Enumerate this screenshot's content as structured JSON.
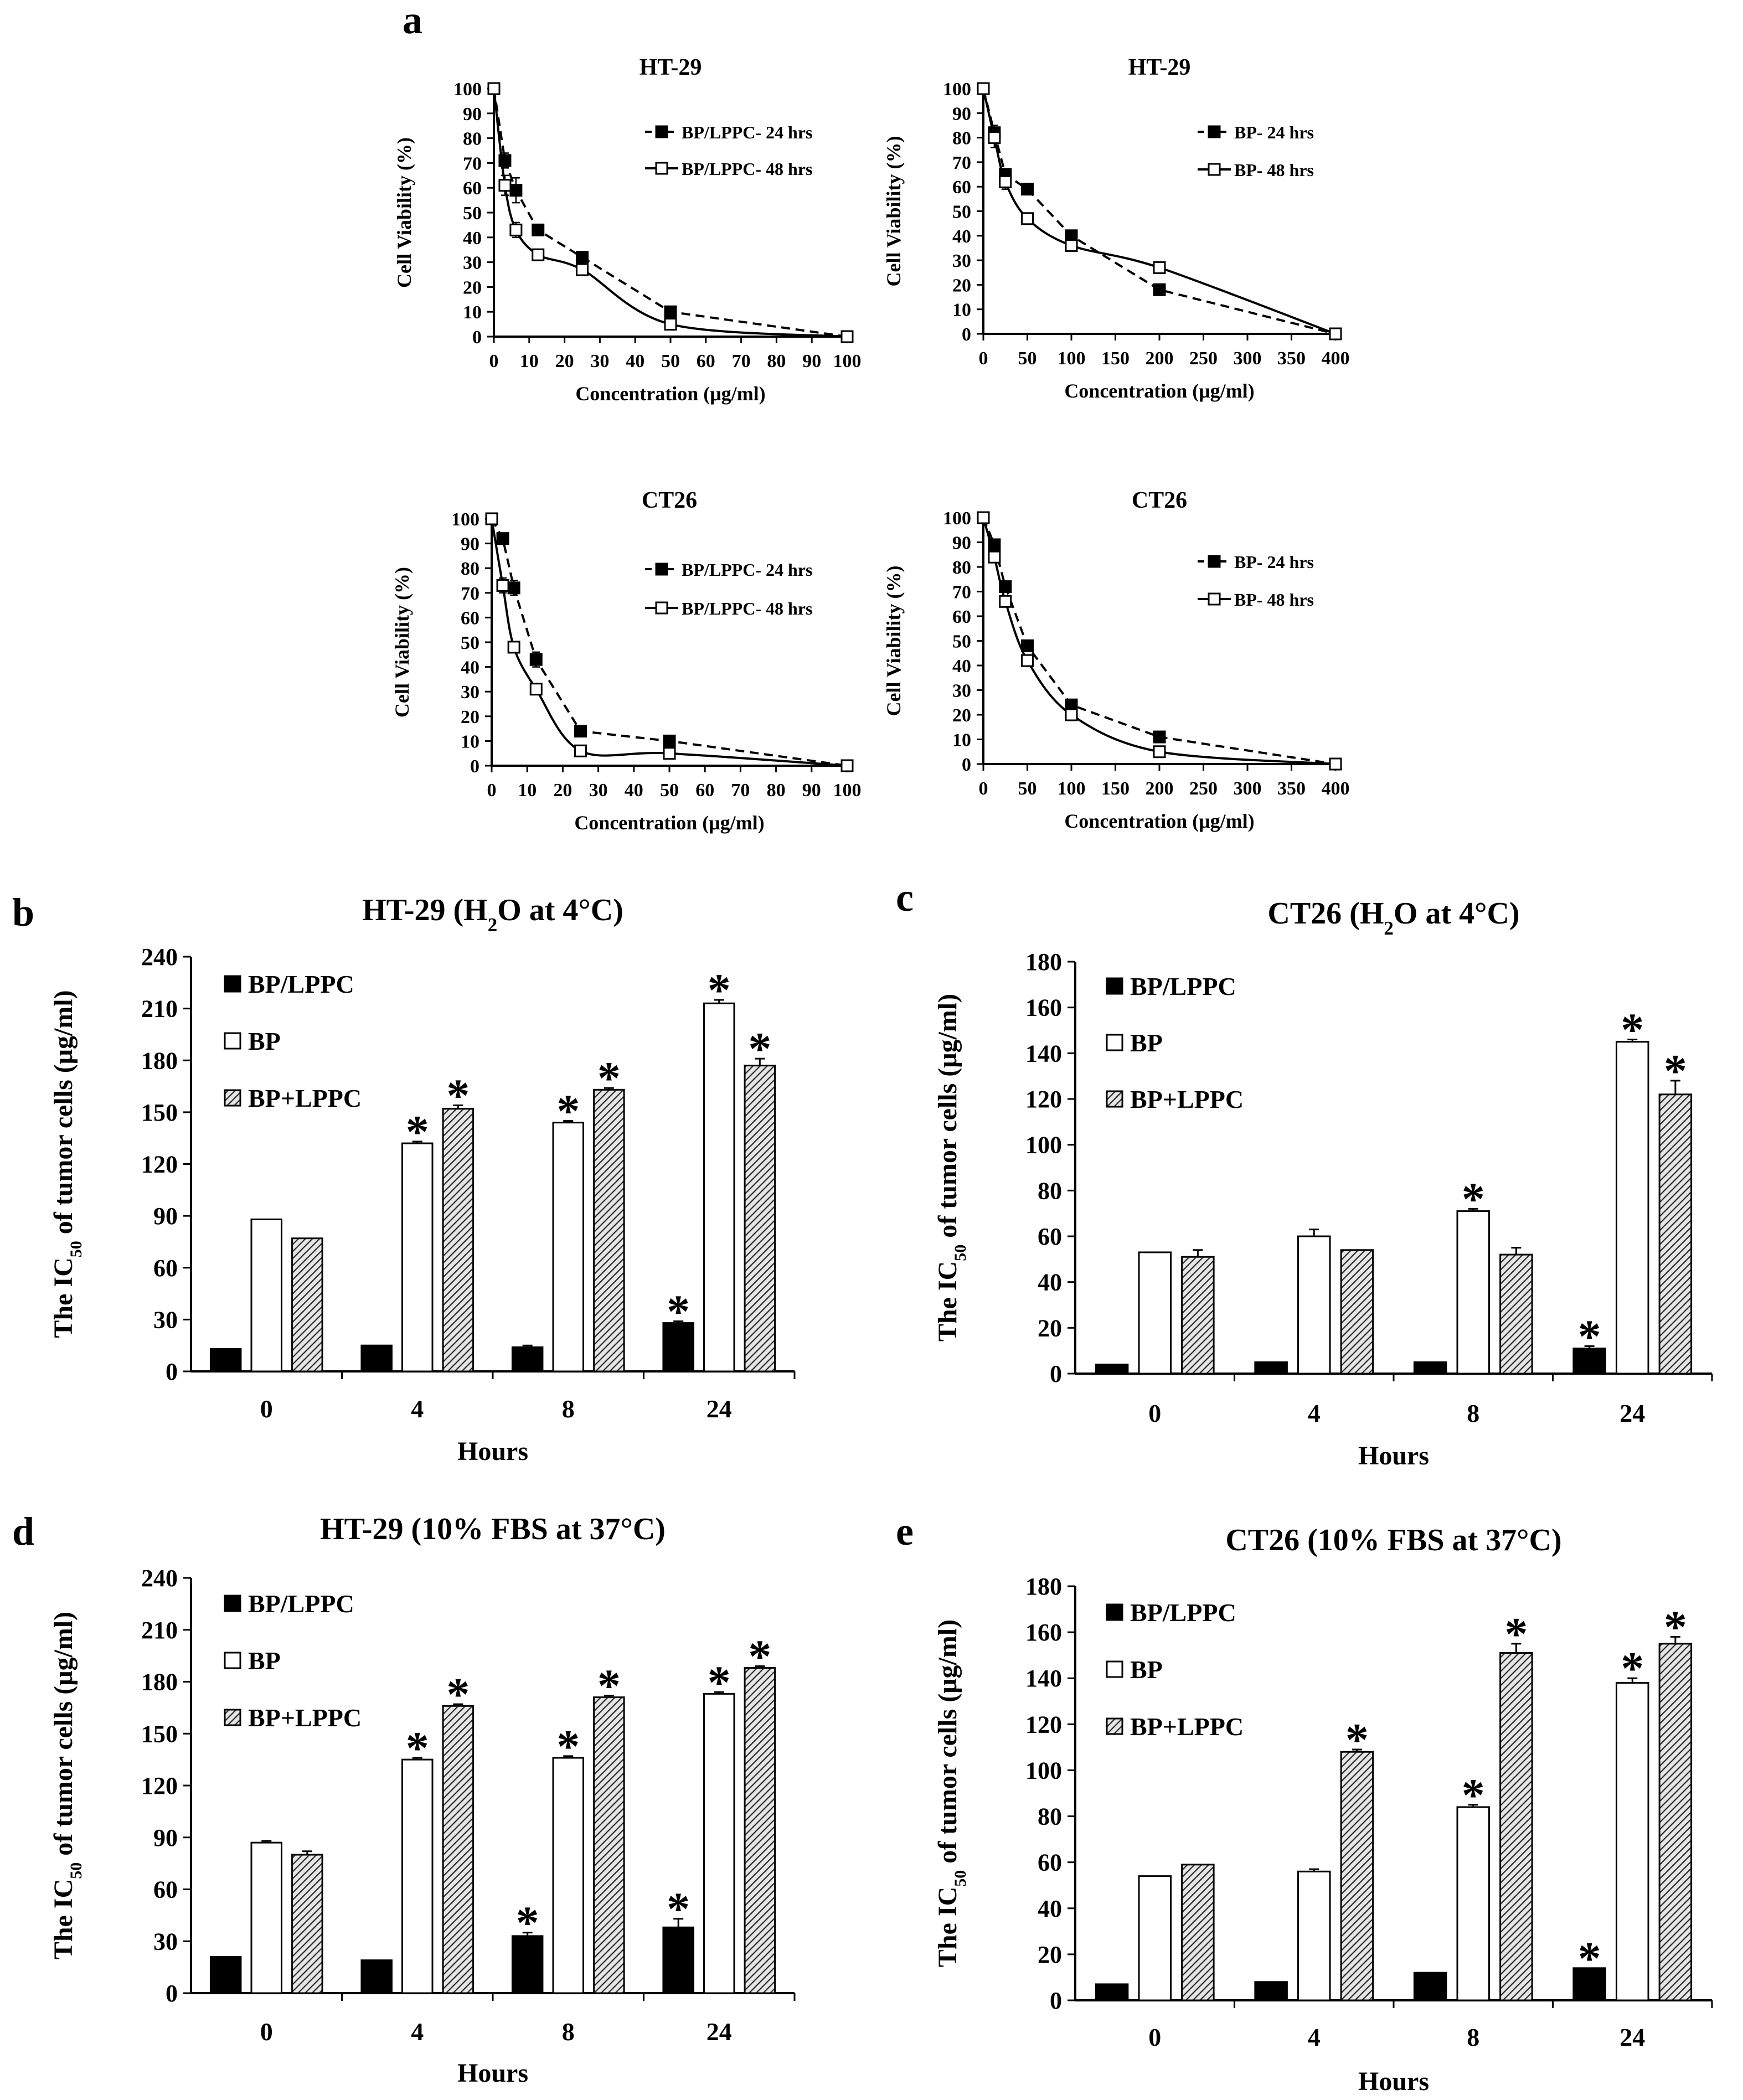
{
  "panel_labels": [
    "a",
    "b",
    "c",
    "d",
    "e"
  ],
  "colors": {
    "axis": "#000000",
    "bp_lppc": "#000000",
    "bp": "#ffffff",
    "bp_plus_lppc": "#7a7a7a",
    "background": "#ffffff"
  },
  "chart_data": [
    {
      "panel": "a",
      "type": "line",
      "title": "HT-29",
      "xlabel": "Concentration (μg/ml)",
      "ylabel": "Cell Viability (%)",
      "xlim": [
        0,
        100
      ],
      "xticks": [
        0,
        10,
        20,
        30,
        40,
        50,
        60,
        70,
        80,
        90,
        100
      ],
      "ylim": [
        0,
        100
      ],
      "yticks": [
        0,
        10,
        20,
        30,
        40,
        50,
        60,
        70,
        80,
        90,
        100
      ],
      "legend_position": "top-right",
      "series": [
        {
          "name": "BP/LPPC- 24 hrs",
          "style": "dashed",
          "marker": "filled-square",
          "x": [
            0,
            3.125,
            6.25,
            12.5,
            25,
            50,
            100
          ],
          "y": [
            100,
            71,
            59,
            43,
            32,
            10,
            0
          ],
          "err": [
            0,
            3,
            5,
            2,
            2,
            1,
            0
          ]
        },
        {
          "name": "BP/LPPC- 48 hrs",
          "style": "solid",
          "marker": "open-square",
          "x": [
            0,
            3.125,
            6.25,
            12.5,
            25,
            50,
            100
          ],
          "y": [
            100,
            61,
            43,
            33,
            27,
            5,
            0
          ],
          "err": [
            0,
            4,
            3,
            2,
            2,
            1,
            0
          ]
        }
      ]
    },
    {
      "panel": "a",
      "type": "line",
      "title": "HT-29",
      "xlabel": "Concentration (μg/ml)",
      "ylabel": "Cell Viability (%)",
      "xlim": [
        0,
        400
      ],
      "xticks": [
        0,
        50,
        100,
        150,
        200,
        250,
        300,
        350,
        400
      ],
      "ylim": [
        0,
        100
      ],
      "yticks": [
        0,
        10,
        20,
        30,
        40,
        50,
        60,
        70,
        80,
        90,
        100
      ],
      "legend_position": "top-right",
      "series": [
        {
          "name": "BP- 24 hrs",
          "style": "dashed",
          "marker": "filled-square",
          "x": [
            0,
            12.5,
            25,
            50,
            100,
            200,
            400
          ],
          "y": [
            100,
            82,
            65,
            59,
            40,
            18,
            0
          ],
          "err": [
            0,
            3,
            2,
            2,
            1,
            1,
            0
          ]
        },
        {
          "name": "BP- 48 hrs",
          "style": "solid",
          "marker": "open-square",
          "x": [
            0,
            12.5,
            25,
            50,
            100,
            200,
            400
          ],
          "y": [
            100,
            80,
            62,
            47,
            36,
            27,
            0
          ],
          "err": [
            0,
            4,
            3,
            1,
            1,
            1,
            0
          ]
        }
      ]
    },
    {
      "panel": "a",
      "type": "line",
      "title": "CT26",
      "xlabel": "Concentration (μg/ml)",
      "ylabel": "Cell Viability (%)",
      "xlim": [
        0,
        100
      ],
      "xticks": [
        0,
        10,
        20,
        30,
        40,
        50,
        60,
        70,
        80,
        90,
        100
      ],
      "ylim": [
        0,
        100
      ],
      "yticks": [
        0,
        10,
        20,
        30,
        40,
        50,
        60,
        70,
        80,
        90,
        100
      ],
      "legend_position": "top-right",
      "series": [
        {
          "name": "BP/LPPC- 24 hrs",
          "style": "dashed",
          "marker": "filled-square",
          "x": [
            0,
            3.125,
            6.25,
            12.5,
            25,
            50,
            100
          ],
          "y": [
            100,
            92,
            72,
            43,
            14,
            10,
            0
          ],
          "err": [
            0,
            2,
            3,
            3,
            1,
            1,
            0
          ]
        },
        {
          "name": "BP/LPPC- 48 hrs",
          "style": "solid",
          "marker": "open-square",
          "x": [
            0,
            3.125,
            6.25,
            12.5,
            25,
            50,
            100
          ],
          "y": [
            100,
            73,
            48,
            31,
            6,
            5,
            0
          ],
          "err": [
            0,
            3,
            2,
            2,
            1,
            1,
            0
          ]
        }
      ]
    },
    {
      "panel": "a",
      "type": "line",
      "title": "CT26",
      "xlabel": "Concentration (μg/ml)",
      "ylabel": "Cell Viability (%)",
      "xlim": [
        0,
        400
      ],
      "xticks": [
        0,
        50,
        100,
        150,
        200,
        250,
        300,
        350,
        400
      ],
      "ylim": [
        0,
        100
      ],
      "yticks": [
        0,
        10,
        20,
        30,
        40,
        50,
        60,
        70,
        80,
        90,
        100
      ],
      "legend_position": "top-right",
      "series": [
        {
          "name": "BP- 24 hrs",
          "style": "dashed",
          "marker": "filled-square",
          "x": [
            0,
            12.5,
            25,
            50,
            100,
            200,
            400
          ],
          "y": [
            100,
            89,
            72,
            48,
            24,
            11,
            0
          ],
          "err": [
            0,
            2,
            2,
            2,
            1,
            1,
            0
          ]
        },
        {
          "name": "BP- 48 hrs",
          "style": "solid",
          "marker": "open-square",
          "x": [
            0,
            12.5,
            25,
            50,
            100,
            200,
            400
          ],
          "y": [
            100,
            84,
            66,
            42,
            20,
            5,
            0
          ],
          "err": [
            0,
            2,
            2,
            2,
            1,
            1,
            0
          ]
        }
      ]
    },
    {
      "panel": "b",
      "type": "bar",
      "title": "HT-29 (H2O at 4°C)",
      "title_parts": {
        "pre": "HT-29 (H",
        "sub": "2",
        "post": "O at 4°C)"
      },
      "xlabel": "Hours",
      "ylabel": "The IC50 of tumor cells (μg/ml)",
      "ylabel_parts": {
        "pre": "The IC",
        "sub": "50",
        "post": " of tumor cells (μg/ml)"
      },
      "categories": [
        "0",
        "4",
        "8",
        "24"
      ],
      "ylim": [
        0,
        240
      ],
      "yticks": [
        0,
        30,
        60,
        90,
        120,
        150,
        180,
        210,
        240
      ],
      "legend_position": "top-left",
      "significance_mark": "*",
      "series": [
        {
          "name": "BP/LPPC",
          "fill": "solid",
          "values": [
            13,
            15,
            14,
            28
          ],
          "err": [
            0,
            0,
            1,
            1
          ],
          "sig": [
            false,
            false,
            false,
            true
          ]
        },
        {
          "name": "BP",
          "fill": "open",
          "values": [
            88,
            132,
            144,
            213
          ],
          "err": [
            0,
            1,
            1,
            2
          ],
          "sig": [
            false,
            true,
            true,
            true
          ]
        },
        {
          "name": "BP+LPPC",
          "fill": "hatched",
          "values": [
            77,
            152,
            163,
            177
          ],
          "err": [
            0,
            2,
            1,
            4
          ],
          "sig": [
            false,
            true,
            true,
            true
          ]
        }
      ]
    },
    {
      "panel": "c",
      "type": "bar",
      "title": "CT26 (H2O at 4°C)",
      "title_parts": {
        "pre": "CT26 (H",
        "sub": "2",
        "post": "O at 4°C)"
      },
      "xlabel": "Hours",
      "ylabel": "The IC50 of tumor cells (μg/ml)",
      "ylabel_parts": {
        "pre": "The IC",
        "sub": "50",
        "post": " of tumor cells (μg/ml)"
      },
      "categories": [
        "0",
        "4",
        "8",
        "24"
      ],
      "ylim": [
        0,
        180
      ],
      "yticks": [
        0,
        20,
        40,
        60,
        80,
        100,
        120,
        140,
        160,
        180
      ],
      "legend_position": "top-left",
      "significance_mark": "*",
      "series": [
        {
          "name": "BP/LPPC",
          "fill": "solid",
          "values": [
            4,
            5,
            5,
            11
          ],
          "err": [
            0,
            0,
            0,
            1
          ],
          "sig": [
            false,
            false,
            false,
            true
          ]
        },
        {
          "name": "BP",
          "fill": "open",
          "values": [
            53,
            60,
            71,
            145
          ],
          "err": [
            0,
            3,
            1,
            1
          ],
          "sig": [
            false,
            false,
            true,
            true
          ]
        },
        {
          "name": "BP+LPPC",
          "fill": "hatched",
          "values": [
            51,
            54,
            52,
            122
          ],
          "err": [
            3,
            0,
            3,
            6
          ],
          "sig": [
            false,
            false,
            false,
            true
          ]
        }
      ]
    },
    {
      "panel": "d",
      "type": "bar",
      "title": "HT-29 (10% FBS at 37°C)",
      "title_parts": {
        "pre": "HT-29 (10% FBS at 37°C)",
        "sub": "",
        "post": ""
      },
      "xlabel": "Hours",
      "ylabel": "The IC50 of tumor cells (μg/ml)",
      "ylabel_parts": {
        "pre": "The IC",
        "sub": "50",
        "post": " of tumor cells (μg/ml)"
      },
      "categories": [
        "0",
        "4",
        "8",
        "24"
      ],
      "ylim": [
        0,
        240
      ],
      "yticks": [
        0,
        30,
        60,
        90,
        120,
        150,
        180,
        210,
        240
      ],
      "legend_position": "top-left",
      "significance_mark": "*",
      "series": [
        {
          "name": "BP/LPPC",
          "fill": "solid",
          "values": [
            21,
            19,
            33,
            38
          ],
          "err": [
            0,
            0,
            2,
            5
          ],
          "sig": [
            false,
            false,
            true,
            true
          ]
        },
        {
          "name": "BP",
          "fill": "open",
          "values": [
            87,
            135,
            136,
            173
          ],
          "err": [
            1,
            1,
            1,
            1
          ],
          "sig": [
            false,
            true,
            true,
            true
          ]
        },
        {
          "name": "BP+LPPC",
          "fill": "hatched",
          "values": [
            80,
            166,
            171,
            188
          ],
          "err": [
            2,
            1,
            1,
            1
          ],
          "sig": [
            false,
            true,
            true,
            true
          ]
        }
      ]
    },
    {
      "panel": "e",
      "type": "bar",
      "title": "CT26 (10% FBS at 37°C)",
      "title_parts": {
        "pre": "CT26 (10% FBS at 37°C)",
        "sub": "",
        "post": ""
      },
      "xlabel": "Hours",
      "ylabel": "The IC50 of tumor cells (μg/ml)",
      "ylabel_parts": {
        "pre": "The IC",
        "sub": "50",
        "post": " of tumor cells (μg/ml)"
      },
      "categories": [
        "0",
        "4",
        "8",
        "24"
      ],
      "ylim": [
        0,
        180
      ],
      "yticks": [
        0,
        20,
        40,
        60,
        80,
        100,
        120,
        140,
        160,
        180
      ],
      "legend_position": "top-left",
      "significance_mark": "*",
      "series": [
        {
          "name": "BP/LPPC",
          "fill": "solid",
          "values": [
            7,
            8,
            12,
            14
          ],
          "err": [
            0,
            0,
            0,
            0
          ],
          "sig": [
            false,
            false,
            false,
            true
          ]
        },
        {
          "name": "BP",
          "fill": "open",
          "values": [
            54,
            56,
            84,
            138
          ],
          "err": [
            0,
            1,
            1,
            2
          ],
          "sig": [
            false,
            false,
            true,
            true
          ]
        },
        {
          "name": "BP+LPPC",
          "fill": "hatched",
          "values": [
            59,
            108,
            151,
            155
          ],
          "err": [
            0,
            1,
            4,
            3
          ],
          "sig": [
            false,
            true,
            true,
            true
          ]
        }
      ]
    }
  ]
}
